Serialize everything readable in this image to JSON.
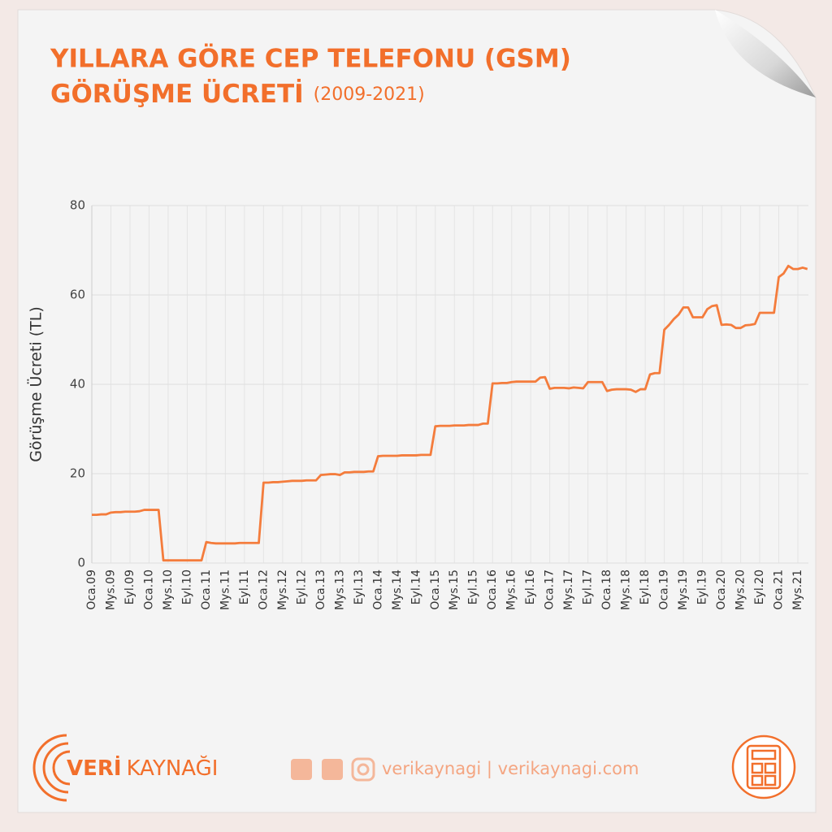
{
  "chart_data": {
    "type": "line",
    "title": "YILLARA GÖRE CEP TELEFONU (GSM)",
    "title_line2": "GÖRÜŞME ÜCRETİ",
    "subtitle": "(2009-2021)",
    "y_label": "Görüşme Ücreti (TL)",
    "ylim": [
      0,
      80
    ],
    "yticks": [
      0,
      20,
      40,
      60,
      80
    ],
    "grid": true,
    "color": "#f47c3c",
    "categories": [
      "Oca.09",
      null,
      null,
      null,
      "Mys.09",
      null,
      null,
      null,
      "Eyl.09",
      null,
      null,
      null,
      "Oca.10",
      null,
      null,
      null,
      "Mys.10",
      null,
      null,
      null,
      "Eyl.10",
      null,
      null,
      null,
      "Oca.11",
      null,
      null,
      null,
      "Mys.11",
      null,
      null,
      null,
      "Eyl.11",
      null,
      null,
      null,
      "Oca.12",
      null,
      null,
      null,
      "Mys.12",
      null,
      null,
      null,
      "Eyl.12",
      null,
      null,
      null,
      "Oca.13",
      null,
      null,
      null,
      "Mys.13",
      null,
      null,
      null,
      "Eyl.13",
      null,
      null,
      null,
      "Oca.14",
      null,
      null,
      null,
      "Mys.14",
      null,
      null,
      null,
      "Eyl.14",
      null,
      null,
      null,
      "Oca.15",
      null,
      null,
      null,
      "Mys.15",
      null,
      null,
      null,
      "Eyl.15",
      null,
      null,
      null,
      "Oca.16",
      null,
      null,
      null,
      "Mys.16",
      null,
      null,
      null,
      "Eyl.16",
      null,
      null,
      null,
      "Oca.17",
      null,
      null,
      null,
      "Mys.17",
      null,
      null,
      null,
      "Eyl.17",
      null,
      null,
      null,
      "Oca.18",
      null,
      null,
      null,
      "Mys.18",
      null,
      null,
      null,
      "Eyl.18",
      null,
      null,
      null,
      "Oca.19",
      null,
      null,
      null,
      "Mys.19",
      null,
      null,
      null,
      "Eyl.19",
      null,
      null,
      null,
      "Oca.20",
      null,
      null,
      null,
      "Mys.20",
      null,
      null,
      null,
      "Eyl.20",
      null,
      null,
      null,
      "Oca.21",
      null,
      null,
      null,
      "Mys.21",
      null,
      null
    ],
    "values": [
      10.8,
      10.8,
      10.9,
      10.9,
      11.3,
      11.4,
      11.4,
      11.5,
      11.5,
      11.5,
      11.6,
      11.9,
      11.9,
      11.9,
      11.9,
      0.6,
      0.6,
      0.6,
      0.6,
      0.6,
      0.6,
      0.6,
      0.6,
      0.6,
      4.7,
      4.5,
      4.4,
      4.4,
      4.4,
      4.4,
      4.4,
      4.5,
      4.5,
      4.5,
      4.5,
      4.5,
      18.0,
      18.0,
      18.1,
      18.1,
      18.2,
      18.3,
      18.4,
      18.4,
      18.4,
      18.5,
      18.5,
      18.5,
      19.7,
      19.8,
      19.9,
      19.9,
      19.7,
      20.3,
      20.3,
      20.4,
      20.4,
      20.4,
      20.5,
      20.5,
      23.9,
      24.0,
      24.0,
      24.0,
      24.0,
      24.1,
      24.1,
      24.1,
      24.1,
      24.2,
      24.2,
      24.2,
      30.6,
      30.7,
      30.7,
      30.7,
      30.8,
      30.8,
      30.8,
      30.9,
      30.9,
      30.9,
      31.2,
      31.2,
      40.2,
      40.2,
      40.3,
      40.3,
      40.5,
      40.6,
      40.6,
      40.6,
      40.6,
      40.6,
      41.5,
      41.6,
      39.0,
      39.2,
      39.2,
      39.2,
      39.1,
      39.3,
      39.2,
      39.1,
      40.5,
      40.5,
      40.5,
      40.5,
      38.5,
      38.8,
      38.9,
      38.9,
      38.9,
      38.8,
      38.3,
      38.9,
      38.9,
      42.2,
      42.5,
      42.5,
      52.2,
      53.3,
      54.6,
      55.6,
      57.2,
      57.2,
      55.0,
      55.0,
      55.0,
      56.8,
      57.5,
      57.7,
      53.3,
      53.4,
      53.3,
      52.6,
      52.6,
      53.2,
      53.3,
      53.5,
      56.0,
      56.0,
      56.0,
      56.0,
      64.0,
      64.8,
      66.5,
      65.8,
      65.8,
      66.1,
      65.8
    ]
  },
  "footer": {
    "brand_bold": "VERİ",
    "brand": "KAYNAĞI",
    "links": "verikaynagi | verikaynagi.com"
  }
}
